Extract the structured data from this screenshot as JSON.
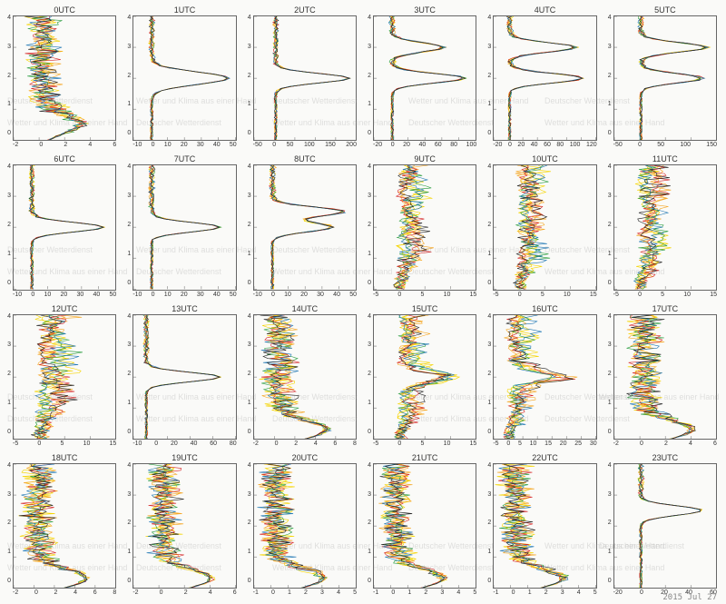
{
  "meta": {
    "date_label": "2015 Jul 27",
    "watermark_line1": "Deutscher Wetterdienst",
    "watermark_line2": "Wetter und Klima aus einer Hand",
    "watermark_color": "rgba(140,140,140,0.25)",
    "watermark_fontsize": 9
  },
  "layout": {
    "rows": 4,
    "cols": 6,
    "background_color": "#fafaf8",
    "panel_border_color": "#666666",
    "title_fontsize": 9,
    "tick_fontsize": 7,
    "xtick_color": "#333333",
    "ytick_color": "#333333"
  },
  "y_axis": {
    "min": 0,
    "max": 4,
    "ticks": [
      0,
      1,
      2,
      3,
      4
    ]
  },
  "series_colors": {
    "yellow": "#f5d500",
    "orange": "#f5a623",
    "green": "#2a9d3f",
    "red": "#d62728",
    "blue": "#1f77b4",
    "black": "#222222"
  },
  "line_width": 0.6,
  "panels": [
    {
      "title": "0UTC",
      "xlim": [
        -2,
        6
      ],
      "xticks": [
        -2,
        0,
        2,
        4,
        6
      ],
      "profile": "tapered",
      "peak_y": 0.5,
      "peak_x": 3,
      "spread": 0.5
    },
    {
      "title": "1UTC",
      "xlim": [
        -10,
        50
      ],
      "xticks": [
        -10,
        0,
        10,
        20,
        30,
        40,
        50
      ],
      "profile": "spike",
      "peak_y": 2.0,
      "peak_x": 45,
      "spread": 0.2
    },
    {
      "title": "2UTC",
      "xlim": [
        -50,
        200
      ],
      "xticks": [
        -50,
        0,
        50,
        100,
        150,
        200
      ],
      "profile": "spike",
      "peak_y": 2.0,
      "peak_x": 180,
      "spread": 0.15
    },
    {
      "title": "3UTC",
      "xlim": [
        -20,
        100
      ],
      "xticks": [
        -20,
        0,
        20,
        40,
        60,
        80,
        100
      ],
      "profile": "doublespike",
      "peak_y": 2.0,
      "peak_x": 85,
      "spread": 0.15,
      "peak2_y": 3.0,
      "peak2_x": 60
    },
    {
      "title": "4UTC",
      "xlim": [
        -20,
        120
      ],
      "xticks": [
        -20,
        0,
        20,
        40,
        60,
        80,
        100,
        120
      ],
      "profile": "doublespike",
      "peak_y": 2.0,
      "peak_x": 100,
      "spread": 0.15,
      "peak2_y": 3.0,
      "peak2_x": 90
    },
    {
      "title": "5UTC",
      "xlim": [
        -50,
        150
      ],
      "xticks": [
        -50,
        0,
        50,
        100,
        150
      ],
      "profile": "doublespike",
      "peak_y": 2.0,
      "peak_x": 120,
      "spread": 0.15,
      "peak2_y": 3.0,
      "peak2_x": 130
    },
    {
      "title": "6UTC",
      "xlim": [
        -10,
        50
      ],
      "xticks": [
        -10,
        0,
        10,
        20,
        30,
        40,
        50
      ],
      "profile": "spike",
      "peak_y": 2.0,
      "peak_x": 42,
      "spread": 0.15
    },
    {
      "title": "7UTC",
      "xlim": [
        -10,
        50
      ],
      "xticks": [
        -10,
        0,
        10,
        20,
        30,
        40,
        50
      ],
      "profile": "spike",
      "peak_y": 2.0,
      "peak_x": 40,
      "spread": 0.15
    },
    {
      "title": "8UTC",
      "xlim": [
        -10,
        50
      ],
      "xticks": [
        -10,
        0,
        10,
        20,
        30,
        40,
        50
      ],
      "profile": "doublespike",
      "peak_y": 2.0,
      "peak_x": 35,
      "spread": 0.15,
      "peak2_y": 2.5,
      "peak2_x": 42
    },
    {
      "title": "9UTC",
      "xlim": [
        -5,
        15
      ],
      "xticks": [
        -5,
        0,
        5,
        10,
        15
      ],
      "profile": "noisy",
      "peak_y": 1.5,
      "peak_x": 10,
      "spread": 1.5
    },
    {
      "title": "10UTC",
      "xlim": [
        -5,
        15
      ],
      "xticks": [
        -5,
        0,
        5,
        10,
        15
      ],
      "profile": "noisy",
      "peak_y": 2.0,
      "peak_x": 8,
      "spread": 1.8
    },
    {
      "title": "11UTC",
      "xlim": [
        -5,
        15
      ],
      "xticks": [
        -5,
        0,
        5,
        10,
        15
      ],
      "profile": "noisy",
      "peak_y": 2.0,
      "peak_x": 9,
      "spread": 1.8
    },
    {
      "title": "12UTC",
      "xlim": [
        -5,
        15
      ],
      "xticks": [
        -5,
        0,
        5,
        10,
        15
      ],
      "profile": "noisy_wide",
      "peak_y": 2.5,
      "peak_x": 10,
      "spread": 2.0
    },
    {
      "title": "13UTC",
      "xlim": [
        -10,
        80
      ],
      "xticks": [
        -10,
        0,
        20,
        40,
        60,
        80
      ],
      "profile": "spike",
      "peak_y": 2.0,
      "peak_x": 65,
      "spread": 0.15
    },
    {
      "title": "14UTC",
      "xlim": [
        -2,
        8
      ],
      "xticks": [
        -2,
        0,
        2,
        4,
        6,
        8
      ],
      "profile": "tapered",
      "peak_y": 0.3,
      "peak_x": 5,
      "spread": 1.2
    },
    {
      "title": "15UTC",
      "xlim": [
        -5,
        15
      ],
      "xticks": [
        -5,
        0,
        5,
        10,
        15
      ],
      "profile": "noisy_spike",
      "peak_y": 2.0,
      "peak_x": 12,
      "spread": 1.2
    },
    {
      "title": "16UTC",
      "xlim": [
        -5,
        30
      ],
      "xticks": [
        -5,
        0,
        5,
        10,
        15,
        20,
        25,
        30
      ],
      "profile": "noisy_spike",
      "peak_y": 2.0,
      "peak_x": 22,
      "spread": 1.0
    },
    {
      "title": "17UTC",
      "xlim": [
        -2,
        6
      ],
      "xticks": [
        -2,
        0,
        2,
        4,
        6
      ],
      "profile": "tapered",
      "peak_y": 0.3,
      "peak_x": 4,
      "spread": 1.5
    },
    {
      "title": "18UTC",
      "xlim": [
        -2,
        8
      ],
      "xticks": [
        -2,
        0,
        2,
        4,
        6,
        8
      ],
      "profile": "tapered",
      "peak_y": 0.3,
      "peak_x": 5,
      "spread": 1.5
    },
    {
      "title": "19UTC",
      "xlim": [
        -2,
        6
      ],
      "xticks": [
        -2,
        0,
        2,
        4,
        6
      ],
      "profile": "tapered",
      "peak_y": 0.3,
      "peak_x": 4,
      "spread": 1.5
    },
    {
      "title": "20UTC",
      "xlim": [
        -1,
        5
      ],
      "xticks": [
        -1,
        0,
        1,
        2,
        3,
        4,
        5
      ],
      "profile": "tapered",
      "peak_y": 0.3,
      "peak_x": 3,
      "spread": 1.5
    },
    {
      "title": "21UTC",
      "xlim": [
        -1,
        5
      ],
      "xticks": [
        -1,
        0,
        1,
        2,
        3,
        4,
        5
      ],
      "profile": "tapered",
      "peak_y": 0.3,
      "peak_x": 3,
      "spread": 1.5
    },
    {
      "title": "22UTC",
      "xlim": [
        -1,
        5
      ],
      "xticks": [
        -1,
        0,
        1,
        2,
        3,
        4,
        5
      ],
      "profile": "tapered",
      "peak_y": 0.3,
      "peak_x": 3,
      "spread": 1.5
    },
    {
      "title": "23UTC",
      "xlim": [
        -20,
        60
      ],
      "xticks": [
        -20,
        0,
        20,
        40,
        60
      ],
      "profile": "spike",
      "peak_y": 2.5,
      "peak_x": 48,
      "spread": 0.15
    }
  ]
}
